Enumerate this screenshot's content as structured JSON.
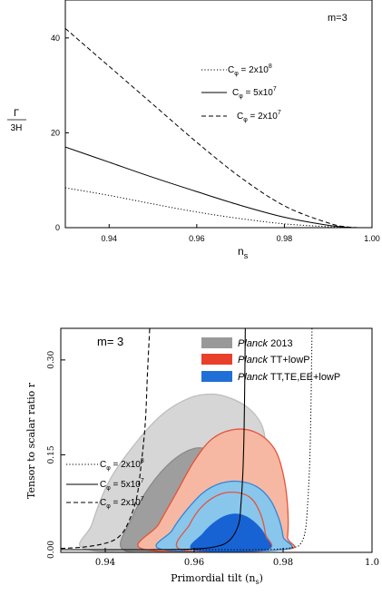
{
  "chart_data": [
    {
      "type": "line",
      "annotation": "m=3",
      "xlabel": "n",
      "xlabel_sub": "s",
      "ylabel_num": "Γ",
      "ylabel_den": "3H",
      "xlim": [
        0.93,
        1.0
      ],
      "ylim": [
        0,
        48
      ],
      "xticks": [
        0.94,
        0.96,
        0.98,
        1.0
      ],
      "xtick_labels": [
        "0.94",
        "0.96",
        "0.98",
        "1.00"
      ],
      "yticks": [
        0,
        20,
        40
      ],
      "ytick_labels": [
        "0",
        "20",
        "40"
      ],
      "legend": [
        {
          "style": "dotted",
          "label": "C",
          "sub": "φ",
          "value": "= 2x10",
          "exp": "8"
        },
        {
          "style": "solid",
          "label": "C",
          "sub": "φ",
          "value": "= 5x10",
          "exp": "7"
        },
        {
          "style": "dashed",
          "label": "C",
          "sub": "φ",
          "value": "= 2x10",
          "exp": "7"
        }
      ],
      "series": [
        {
          "style": "dotted",
          "x": [
            0.93,
            0.94,
            0.95,
            0.96,
            0.97,
            0.98,
            0.99,
            0.995,
            1.0
          ],
          "y": [
            8.4,
            6.8,
            5.0,
            3.3,
            1.9,
            0.8,
            0.2,
            0.02,
            0.0
          ]
        },
        {
          "style": "solid",
          "x": [
            0.93,
            0.94,
            0.95,
            0.96,
            0.97,
            0.98,
            0.99,
            0.995,
            1.0
          ],
          "y": [
            17.0,
            13.8,
            10.6,
            7.6,
            4.7,
            2.2,
            0.5,
            0.05,
            0.0
          ]
        },
        {
          "style": "dashed",
          "x": [
            0.93,
            0.94,
            0.95,
            0.96,
            0.97,
            0.98,
            0.99,
            0.995,
            1.0
          ],
          "y": [
            42.0,
            34.0,
            26.0,
            18.0,
            10.6,
            4.6,
            1.0,
            0.1,
            0.0
          ]
        }
      ]
    },
    {
      "type": "contour",
      "annotation": "m= 3",
      "xlabel": "Primordial tilt (n",
      "xlabel_sub": "s",
      "xlabel_end": ")",
      "ylabel": "Tensor to scalar ratio r",
      "xlim": [
        0.93,
        1.0
      ],
      "ylim": [
        0,
        0.35
      ],
      "xticks": [
        0.94,
        0.96,
        0.98,
        1.0
      ],
      "xtick_labels": [
        "0.94",
        "0.96",
        "0.98",
        "1.0"
      ],
      "yticks": [
        0.0,
        0.15,
        0.3
      ],
      "ytick_labels": [
        "0.00",
        "0.15",
        "0.30"
      ],
      "legend": [
        {
          "color": "#999999",
          "label": "Planck",
          "rest": " 2013"
        },
        {
          "color": "#e8402b",
          "label": "Planck",
          "rest": " TT+lowP"
        },
        {
          "color": "#1f6fd6",
          "label": "Planck",
          "rest": " TT,TE,EE+lowP"
        }
      ],
      "line_legend": [
        {
          "style": "dotted",
          "label": "C",
          "sub": "φ",
          "value": "= 2x10",
          "exp": "8"
        },
        {
          "style": "solid",
          "label": "C",
          "sub": "φ",
          "value": "= 5x10",
          "exp": "7"
        },
        {
          "style": "dashed",
          "label": "C",
          "sub": "φ",
          "value": "= 2x10",
          "exp": "7"
        }
      ],
      "regions": [
        {
          "name": "Planck 2013 95%",
          "fill": "#d6d6d6",
          "stroke": "#bdbdbd",
          "points": [
            [
              0.936,
              0.0
            ],
            [
              0.937,
              0.04
            ],
            [
              0.941,
              0.11
            ],
            [
              0.947,
              0.17
            ],
            [
              0.953,
              0.215
            ],
            [
              0.959,
              0.24
            ],
            [
              0.964,
              0.246
            ],
            [
              0.968,
              0.24
            ],
            [
              0.972,
              0.225
            ],
            [
              0.975,
              0.2
            ],
            [
              0.976,
              0.17
            ],
            [
              0.9755,
              0.13
            ],
            [
              0.974,
              0.09
            ],
            [
              0.971,
              0.05
            ],
            [
              0.967,
              0.02
            ],
            [
              0.962,
              0.0
            ]
          ]
        },
        {
          "name": "Planck 2013 68%",
          "fill": "#9e9e9e",
          "stroke": "#8a8a8a",
          "points": [
            [
              0.944,
              0.0
            ],
            [
              0.946,
              0.05
            ],
            [
              0.95,
              0.1
            ],
            [
              0.955,
              0.14
            ],
            [
              0.96,
              0.16
            ],
            [
              0.964,
              0.155
            ],
            [
              0.967,
              0.13
            ],
            [
              0.968,
              0.1
            ],
            [
              0.966,
              0.06
            ],
            [
              0.962,
              0.025
            ],
            [
              0.957,
              0.0
            ]
          ]
        },
        {
          "name": "TT+lowP 95%",
          "fill": "#f7b8a3",
          "stroke": "#e5533a",
          "points": [
            [
              0.949,
              0.0
            ],
            [
              0.952,
              0.04
            ],
            [
              0.956,
              0.09
            ],
            [
              0.96,
              0.14
            ],
            [
              0.964,
              0.175
            ],
            [
              0.969,
              0.19
            ],
            [
              0.974,
              0.185
            ],
            [
              0.978,
              0.16
            ],
            [
              0.98,
              0.12
            ],
            [
              0.981,
              0.07
            ],
            [
              0.981,
              0.02
            ],
            [
              0.98,
              0.0
            ]
          ]
        },
        {
          "name": "TT,TE,EE+lowP 95%",
          "fill": "#89c6ec",
          "stroke": "#2f86d9",
          "points": [
            [
              0.953,
              0.0
            ],
            [
              0.955,
              0.03
            ],
            [
              0.958,
              0.06
            ],
            [
              0.962,
              0.09
            ],
            [
              0.966,
              0.105
            ],
            [
              0.97,
              0.108
            ],
            [
              0.974,
              0.1
            ],
            [
              0.977,
              0.08
            ],
            [
              0.979,
              0.05
            ],
            [
              0.98,
              0.02
            ],
            [
              0.98,
              0.0
            ]
          ]
        },
        {
          "name": "TT+lowP 68%",
          "fill": "none",
          "stroke": "#e5533a",
          "points": [
            [
              0.957,
              0.0
            ],
            [
              0.959,
              0.04
            ],
            [
              0.962,
              0.07
            ],
            [
              0.966,
              0.088
            ],
            [
              0.97,
              0.09
            ],
            [
              0.973,
              0.08
            ],
            [
              0.975,
              0.055
            ],
            [
              0.976,
              0.025
            ],
            [
              0.976,
              0.0
            ]
          ]
        },
        {
          "name": "TT,TE,EE+lowP 68%",
          "fill": "#1763d4",
          "stroke": "#1763d4",
          "points": [
            [
              0.96,
              0.0
            ],
            [
              0.962,
              0.025
            ],
            [
              0.965,
              0.045
            ],
            [
              0.968,
              0.055
            ],
            [
              0.971,
              0.054
            ],
            [
              0.974,
              0.04
            ],
            [
              0.976,
              0.02
            ],
            [
              0.976,
              0.0
            ]
          ]
        }
      ],
      "series": [
        {
          "style": "dashed",
          "x": [
            0.93,
            0.935,
            0.94,
            0.943,
            0.945,
            0.947,
            0.948,
            0.949,
            0.9495,
            0.95
          ],
          "y": [
            0.002,
            0.004,
            0.01,
            0.02,
            0.04,
            0.08,
            0.13,
            0.2,
            0.28,
            0.35
          ]
        },
        {
          "style": "solid",
          "x": [
            0.93,
            0.95,
            0.96,
            0.965,
            0.968,
            0.97,
            0.9705,
            0.971,
            0.9713,
            0.9715
          ],
          "y": [
            0.0,
            0.0,
            0.001,
            0.005,
            0.015,
            0.04,
            0.07,
            0.13,
            0.22,
            0.35
          ]
        },
        {
          "style": "dotted",
          "x": [
            0.93,
            0.96,
            0.975,
            0.982,
            0.984,
            0.985,
            0.9855,
            0.986,
            0.9863,
            0.9865
          ],
          "y": [
            0.0,
            0.0,
            0.0,
            0.003,
            0.01,
            0.03,
            0.07,
            0.14,
            0.24,
            0.35
          ]
        }
      ]
    }
  ]
}
